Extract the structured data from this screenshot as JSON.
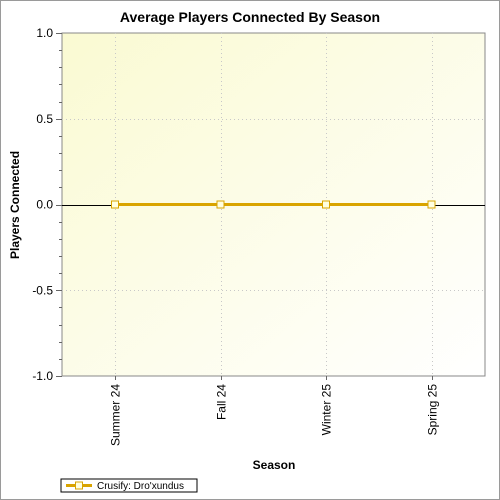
{
  "chart_data": {
    "type": "line",
    "title": "Average Players Connected By Season",
    "xlabel": "Season",
    "ylabel": "Players Connected",
    "categories": [
      "Summer 24",
      "Fall 24",
      "Winter 25",
      "Spring 25"
    ],
    "ylim": [
      -1.0,
      1.0
    ],
    "yticks": [
      "1.0",
      "0.5",
      "0.0",
      "-0.5",
      "-1.0"
    ],
    "series": [
      {
        "name": "Crusify: Dro'xundus",
        "values": [
          0,
          0,
          0,
          0
        ]
      }
    ],
    "grid": true,
    "legend_position": "bottom-left"
  },
  "colors": {
    "series_line": "#d9a400",
    "marker_fill": "#ffffe0",
    "plot_bg_start": "#fafad2",
    "plot_bg_end": "#ffffff"
  }
}
